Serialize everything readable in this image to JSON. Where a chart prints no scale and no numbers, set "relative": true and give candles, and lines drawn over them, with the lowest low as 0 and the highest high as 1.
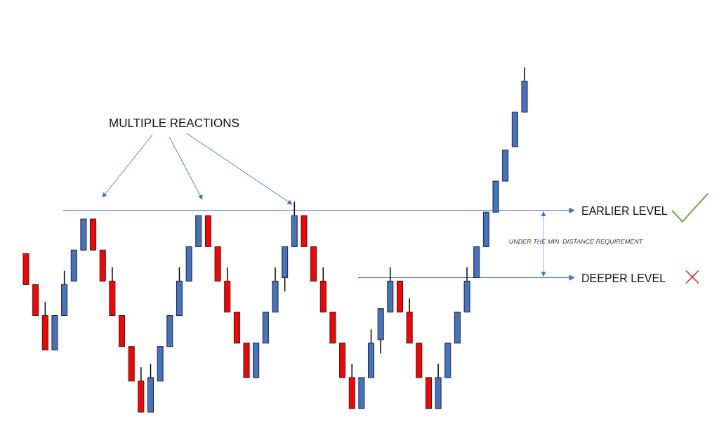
{
  "chart_data": {
    "type": "candlestick",
    "relative": true,
    "categories": [
      null,
      null,
      null,
      null,
      null,
      null,
      null,
      null,
      null,
      null,
      null,
      null,
      null,
      null,
      null,
      null,
      null,
      null,
      null,
      null,
      null,
      null,
      null,
      null,
      null,
      null,
      null,
      null,
      null,
      null,
      null,
      null,
      null,
      null,
      null,
      null,
      null,
      null,
      null,
      null,
      null,
      null,
      null,
      null,
      null,
      null,
      null,
      null,
      null,
      null,
      null,
      null,
      null
    ],
    "ohlc": [
      [
        0.46,
        0.46,
        0.37,
        0.37
      ],
      [
        0.37,
        0.37,
        0.28,
        0.28
      ],
      [
        0.28,
        0.32,
        0.18,
        0.18
      ],
      [
        0.18,
        0.28,
        0.18,
        0.28
      ],
      [
        0.28,
        0.41,
        0.28,
        0.37
      ],
      [
        0.38,
        0.47,
        0.38,
        0.47
      ],
      [
        0.47,
        0.56,
        0.47,
        0.56
      ],
      [
        0.56,
        0.56,
        0.47,
        0.47
      ],
      [
        0.47,
        0.47,
        0.38,
        0.38
      ],
      [
        0.38,
        0.42,
        0.28,
        0.28
      ],
      [
        0.28,
        0.28,
        0.19,
        0.19
      ],
      [
        0.19,
        0.19,
        0.09,
        0.09
      ],
      [
        0.09,
        0.13,
        0,
        0
      ],
      [
        0,
        0.14,
        0,
        0.1
      ],
      [
        0.09,
        0.19,
        0.09,
        0.19
      ],
      [
        0.19,
        0.28,
        0.19,
        0.28
      ],
      [
        0.28,
        0.42,
        0.28,
        0.38
      ],
      [
        0.38,
        0.48,
        0.38,
        0.48
      ],
      [
        0.48,
        0.57,
        0.48,
        0.57
      ],
      [
        0.57,
        0.57,
        0.48,
        0.48
      ],
      [
        0.48,
        0.48,
        0.38,
        0.38
      ],
      [
        0.38,
        0.42,
        0.29,
        0.29
      ],
      [
        0.29,
        0.29,
        0.2,
        0.2
      ],
      [
        0.2,
        0.2,
        0.1,
        0.1
      ],
      [
        0.1,
        0.2,
        0.1,
        0.2
      ],
      [
        0.2,
        0.29,
        0.2,
        0.29
      ],
      [
        0.29,
        0.42,
        0.29,
        0.38
      ],
      [
        0.39,
        0.48,
        0.35,
        0.48
      ],
      [
        0.48,
        0.61,
        0.48,
        0.57
      ],
      [
        0.57,
        0.57,
        0.48,
        0.48
      ],
      [
        0.48,
        0.48,
        0.38,
        0.38
      ],
      [
        0.38,
        0.42,
        0.29,
        0.29
      ],
      [
        0.29,
        0.29,
        0.2,
        0.2
      ],
      [
        0.2,
        0.2,
        0.1,
        0.1
      ],
      [
        0.1,
        0.14,
        0.01,
        0.01
      ],
      [
        0.01,
        0.1,
        0.01,
        0.1
      ],
      [
        0.1,
        0.24,
        0.1,
        0.2
      ],
      [
        0.21,
        0.3,
        0.17,
        0.3
      ],
      [
        0.29,
        0.42,
        0.29,
        0.38
      ],
      [
        0.38,
        0.38,
        0.29,
        0.29
      ],
      [
        0.29,
        0.33,
        0.2,
        0.2
      ],
      [
        0.2,
        0.2,
        0.1,
        0.1
      ],
      [
        0.1,
        0.1,
        0.01,
        0.01
      ],
      [
        0.01,
        0.14,
        0.01,
        0.1
      ],
      [
        0.1,
        0.2,
        0.1,
        0.2
      ],
      [
        0.2,
        0.29,
        0.2,
        0.29
      ],
      [
        0.29,
        0.42,
        0.29,
        0.38
      ],
      [
        0.39,
        0.48,
        0.39,
        0.48
      ],
      [
        0.48,
        0.58,
        0.48,
        0.58
      ],
      [
        0.58,
        0.67,
        0.58,
        0.67
      ],
      [
        0.67,
        0.76,
        0.67,
        0.76
      ],
      [
        0.77,
        0.87,
        0.77,
        0.87
      ],
      [
        0.87,
        1,
        0.87,
        0.96
      ]
    ],
    "colors": [
      "#ff0000",
      "#ff0000",
      "#ff0000",
      "#4472c4",
      "#4472c4",
      "#4472c4",
      "#4472c4",
      "#ff0000",
      "#ff0000",
      "#ff0000",
      "#ff0000",
      "#ff0000",
      "#ff0000",
      "#4472c4",
      "#4472c4",
      "#4472c4",
      "#4472c4",
      "#4472c4",
      "#4472c4",
      "#ff0000",
      "#ff0000",
      "#ff0000",
      "#ff0000",
      "#ff0000",
      "#4472c4",
      "#4472c4",
      "#4472c4",
      "#4472c4",
      "#4472c4",
      "#ff0000",
      "#ff0000",
      "#ff0000",
      "#ff0000",
      "#ff0000",
      "#ff0000",
      "#4472c4",
      "#4472c4",
      "#4472c4",
      "#4472c4",
      "#ff0000",
      "#ff0000",
      "#ff0000",
      "#ff0000",
      "#4472c4",
      "#4472c4",
      "#4472c4",
      "#4472c4",
      "#4472c4",
      "#4472c4",
      "#4472c4",
      "#4472c4",
      "#4472c4",
      "#4472c4"
    ],
    "ref_lines": [
      {
        "axis": "y",
        "value": 0.585,
        "label": "EARLIER LEVEL",
        "color": "#4472c4"
      },
      {
        "axis": "y",
        "value": 0.39,
        "label": "DEEPER LEVEL",
        "color": "#4472c4"
      }
    ],
    "annotations": [
      "MULTIPLE REACTIONS",
      "UNDER THE MIN. DISTANCE REQUIREMENT"
    ]
  }
}
